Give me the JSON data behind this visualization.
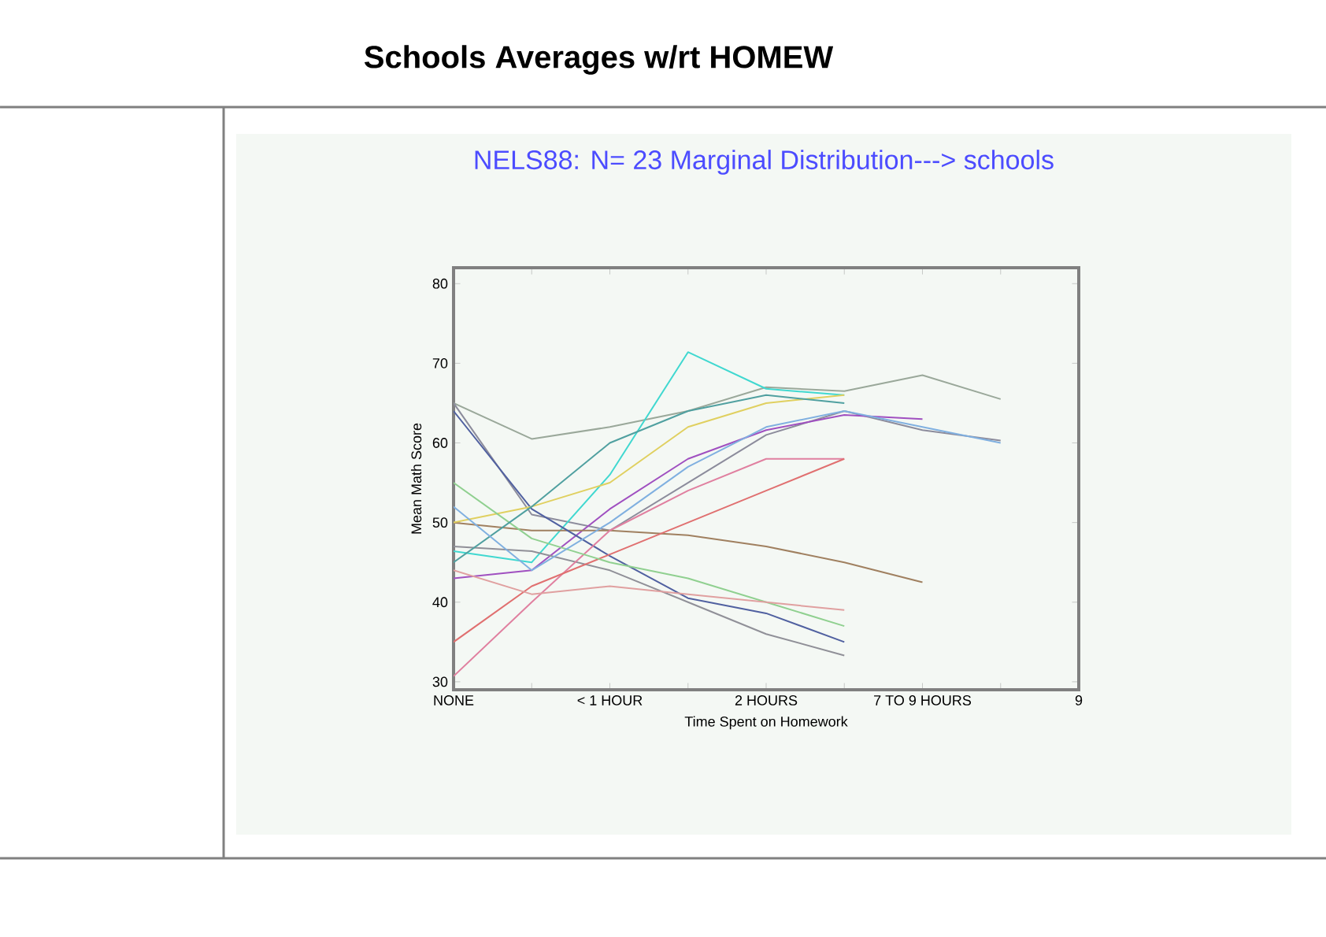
{
  "chart_data": {
    "type": "line",
    "title": "Schools Averages w/rt HOMEW",
    "subtitle": "NELS88:  N= 23   Marginal Distribution---> schools",
    "xlabel": "Time Spent on Homework",
    "ylabel": "Mean Math Score",
    "categories": [
      "NONE",
      null,
      "< 1 HOUR",
      null,
      "2 HOURS",
      null,
      "7 TO 9 HOURS",
      null,
      "9"
    ],
    "ylim": [
      29,
      82
    ],
    "yticks": [
      30,
      40,
      50,
      60,
      70,
      80
    ],
    "grid": false,
    "marker": "none",
    "line_style": "solid",
    "series": [
      {
        "color": "#9aa89a",
        "values": [
          65,
          60.5,
          62,
          64,
          67,
          66.5,
          68.5,
          65.5,
          null
        ]
      },
      {
        "color": "#8c8c9c",
        "values": [
          65,
          51,
          49,
          55,
          61,
          64,
          61.6,
          60.3,
          null
        ]
      },
      {
        "color": "#a050c0",
        "values": [
          43,
          44,
          51.7,
          58,
          61.6,
          63.5,
          63,
          null,
          null
        ]
      },
      {
        "color": "#40d8d0",
        "values": [
          46.4,
          45,
          56,
          71.4,
          66.8,
          66,
          null,
          null,
          null
        ]
      },
      {
        "color": "#a08060",
        "values": [
          50,
          49,
          49,
          48.4,
          47,
          45,
          42.5,
          null,
          null
        ]
      },
      {
        "color": "#5060a0",
        "values": [
          64,
          51.7,
          45.8,
          40.5,
          38.6,
          35,
          null,
          null,
          null
        ]
      },
      {
        "color": "#909098",
        "values": [
          47,
          46.4,
          44,
          40,
          36,
          33.3,
          null,
          null,
          null
        ]
      },
      {
        "color": "#e080a0",
        "values": [
          30.7,
          40,
          49,
          54,
          58,
          58,
          null,
          null,
          null
        ]
      },
      {
        "color": "#e07070",
        "values": [
          35,
          42,
          46,
          50,
          54,
          58,
          null,
          null,
          null
        ]
      },
      {
        "color": "#e0d060",
        "values": [
          50,
          52,
          55,
          62,
          65,
          66,
          null,
          null,
          null
        ]
      },
      {
        "color": "#90d090",
        "values": [
          55,
          48,
          45,
          43,
          40,
          37,
          null,
          null,
          null
        ]
      },
      {
        "color": "#e0a0a0",
        "values": [
          44,
          41,
          42,
          41,
          40,
          39,
          null,
          null,
          null
        ]
      },
      {
        "color": "#50a0a0",
        "values": [
          45,
          52,
          60,
          64,
          66,
          65,
          null,
          null,
          null
        ]
      },
      {
        "color": "#80b0e0",
        "values": [
          52,
          44,
          50,
          57,
          62,
          64,
          62,
          60,
          null
        ]
      }
    ]
  }
}
